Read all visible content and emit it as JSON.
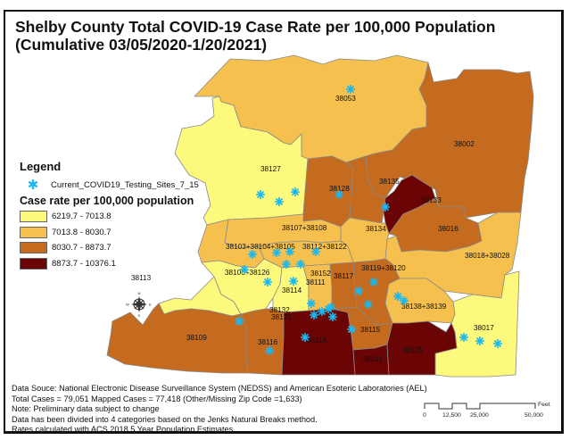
{
  "title": {
    "line1": "Shelby County Total COVID-19 Case Rate per 100,000 Population",
    "line2": "(Cumulative 03/05/2020-1/20/2021)"
  },
  "legend": {
    "heading": "Legend",
    "site_layer": {
      "icon": "asterisk-icon",
      "label": "Current_COVID19_Testing_Sites_7_15",
      "color": "#19b8f0"
    },
    "classes_heading": "Case rate per 100,000 population",
    "classes": [
      {
        "label": "6219.7 - 7013.8",
        "color": "#fdf97c"
      },
      {
        "label": "7013.8 - 8030.7",
        "color": "#f6c04e"
      },
      {
        "label": "8030.7 - 8873.7",
        "color": "#c46b1f"
      },
      {
        "label": "8873.7 - 10376.1",
        "color": "#6b0505"
      }
    ]
  },
  "zip_labels": [
    {
      "text": "38053",
      "class": 1
    },
    {
      "text": "38002",
      "class": 2
    },
    {
      "text": "38127",
      "class": 0
    },
    {
      "text": "38128",
      "class": 2
    },
    {
      "text": "38135",
      "class": 2
    },
    {
      "text": "38133",
      "class": 3
    },
    {
      "text": "38016",
      "class": 2
    },
    {
      "text": "38134",
      "class": 1
    },
    {
      "text": "38107+38108",
      "class": 1
    },
    {
      "text": "38018+38028",
      "class": 1
    },
    {
      "text": "38103+38104+38105",
      "class": 1
    },
    {
      "text": "38112+38122",
      "class": 1
    },
    {
      "text": "38106+38126",
      "class": 0
    },
    {
      "text": "38113",
      "class": 0
    },
    {
      "text": "38152",
      "class": 1
    },
    {
      "text": "38111",
      "class": 1
    },
    {
      "text": "38117",
      "class": 2
    },
    {
      "text": "38119+38120",
      "class": 2
    },
    {
      "text": "38114",
      "class": 0
    },
    {
      "text": "38138+38139",
      "class": 1
    },
    {
      "text": "38132",
      "class": 0
    },
    {
      "text": "38131",
      "class": 0
    },
    {
      "text": "38109",
      "class": 2
    },
    {
      "text": "38116",
      "class": 2
    },
    {
      "text": "38118",
      "class": 3
    },
    {
      "text": "38115",
      "class": 2
    },
    {
      "text": "38017",
      "class": 0
    },
    {
      "text": "38141",
      "class": 3
    },
    {
      "text": "38125",
      "class": 3
    }
  ],
  "compass": {
    "icon": "north-arrow-icon",
    "letters": [
      "N",
      "E",
      "S",
      "W"
    ]
  },
  "notes": [
    "Data Souce: National Electronic Disease Surveillance System (NEDSS) and American Esoteric Laboratories (AEL)",
    "Total Cases = 79,051 Mapped Cases = 77,418 (Other/Missing Zip Code =1,633)",
    "Note: Preliminary data subject to change",
    "Data has been divided into 4 categories based on the Jenks Natural Breaks method.",
    "Rates calculated with ACS 2018 5 Year Population Estimates."
  ],
  "scale_bar": {
    "unit": "Feet",
    "ticks": [
      "0",
      "12,500",
      "25,000",
      "50,000"
    ]
  }
}
